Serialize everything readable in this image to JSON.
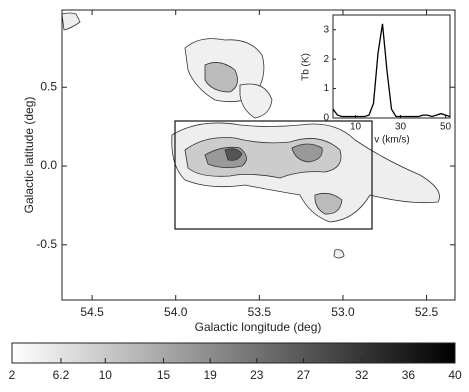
{
  "chart_data": [
    {
      "type": "contour",
      "xlabel": "Galactic longitude (deg)",
      "ylabel": "Galactic latitude (deg)",
      "xlim": [
        54.68,
        52.33
      ],
      "ylim": [
        -0.85,
        0.99
      ],
      "xticks": [
        54.5,
        {
          "value": 54,
          "label": "54.0"
        },
        53.5,
        {
          "value": 53,
          "label": "53.0"
        },
        52.5
      ],
      "yticks": [
        -0.5,
        {
          "value": 0,
          "label": "0.0"
        },
        0.5
      ]
    },
    {
      "type": "line",
      "xlabel": "v (km/s)",
      "ylabel": "Tb (K)",
      "xlim": [
        0,
        52
      ],
      "ylim": [
        0,
        3.5
      ],
      "xticks": [
        10,
        30,
        50
      ],
      "yticks": [
        0,
        1,
        2,
        3
      ],
      "color": "#000000",
      "x": [
        0,
        2,
        4,
        6,
        8,
        10,
        12,
        14,
        16,
        18,
        20,
        22,
        24,
        26,
        28,
        30,
        32,
        34,
        36,
        38,
        40,
        42,
        44,
        46,
        48,
        50,
        52
      ],
      "values": [
        0.3,
        0.1,
        0.05,
        0.05,
        0.05,
        0.05,
        0.05,
        0.05,
        0.1,
        0.5,
        2.2,
        3.2,
        1.6,
        0.3,
        0.05,
        0.05,
        0.05,
        0.05,
        0.05,
        0.05,
        0.1,
        0.1,
        0.05,
        0.1,
        0.15,
        0.1,
        0.05
      ]
    },
    {
      "type": "colorbar",
      "lim": [
        2,
        40
      ],
      "colors": [
        "#ffffff",
        "#000000"
      ],
      "ticks": [
        2,
        6.2,
        10,
        15,
        19,
        23,
        27,
        32,
        36,
        40
      ]
    }
  ]
}
